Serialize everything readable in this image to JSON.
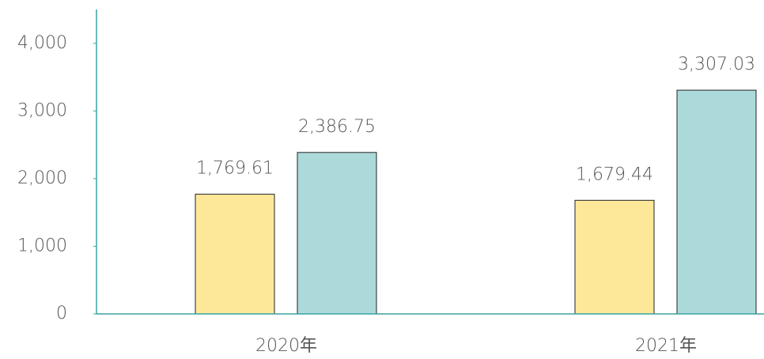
{
  "chart_data": {
    "type": "bar",
    "categories": [
      "2020年",
      "2021年"
    ],
    "series": [
      {
        "color": "#fde89a",
        "values": [
          1769.61,
          1679.44
        ],
        "value_labels": [
          "1,769.61",
          "1,679.44"
        ]
      },
      {
        "color": "#acdada",
        "values": [
          2386.75,
          3307.03
        ],
        "value_labels": [
          "2,386.75",
          "3,307.03"
        ]
      }
    ],
    "ylim": [
      0,
      4500
    ],
    "yticks": [
      0,
      {
        "value": 1000,
        "label": "1,000"
      },
      {
        "value": 2000,
        "label": "2,000"
      },
      {
        "value": 3000,
        "label": "3,000"
      },
      {
        "value": 4000,
        "label": "4,000"
      }
    ],
    "axis_color": "#3aa3a3"
  }
}
